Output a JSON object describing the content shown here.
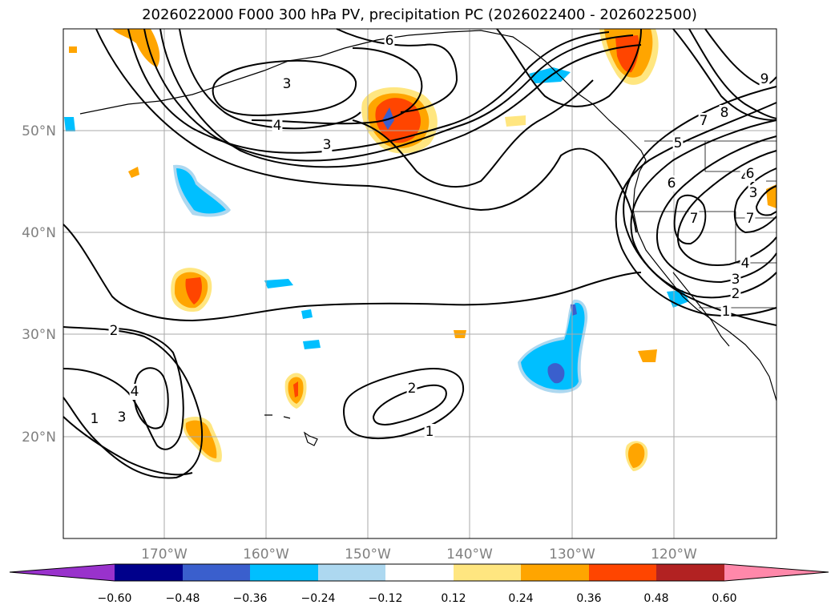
{
  "title": "2026022000 F000 300 hPa PV, precipitation PC (2026022400 - 2026022500)",
  "lat_labels": [
    "50°N",
    "40°N",
    "30°N",
    "20°N"
  ],
  "lon_labels": [
    "170°W",
    "160°W",
    "150°W",
    "140°W",
    "130°W",
    "120°W"
  ],
  "contour_labels": [
    "6",
    "3",
    "4",
    "3",
    "2",
    "4",
    "3",
    "1",
    "2",
    "1",
    "9",
    "8",
    "7",
    "6",
    "5",
    "4",
    "3",
    "7",
    "7",
    "6",
    "4",
    "3",
    "2",
    "1"
  ],
  "colorbar": {
    "ticks": [
      "−0.60",
      "−0.48",
      "−0.36",
      "−0.24",
      "−0.12",
      "0.12",
      "0.24",
      "0.36",
      "0.48",
      "0.60"
    ],
    "colors": [
      "#9932cc",
      "#00008b",
      "#3a5fcd",
      "#00bfff",
      "#add8f0",
      "#ffffff",
      "#ffe680",
      "#ffa500",
      "#ff4500",
      "#b22222",
      "#ff88aa"
    ]
  },
  "chart_data": {
    "type": "map",
    "title": "2026022000 F000 300 hPa PV, precipitation PC (2026022400 - 2026022500)",
    "field_contours": "300 hPa PV",
    "field_shaded": "precipitation PC",
    "lon_range": [
      -180,
      -110
    ],
    "lat_range": [
      10,
      60
    ],
    "contour_levels_labeled": [
      1,
      2,
      3,
      4,
      5,
      6,
      7,
      8,
      9
    ],
    "colorbar_levels": [
      -0.6,
      -0.48,
      -0.36,
      -0.24,
      -0.12,
      0.12,
      0.24,
      0.36,
      0.48,
      0.6
    ]
  }
}
